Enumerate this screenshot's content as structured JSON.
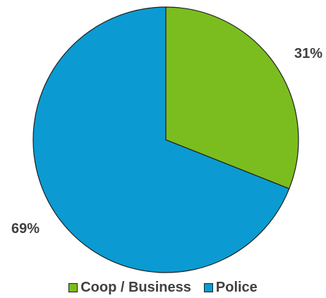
{
  "chart_data": {
    "type": "pie",
    "categories": [
      "Coop / Business",
      "Police"
    ],
    "values": [
      31,
      69
    ],
    "value_labels": [
      "31%",
      "69%"
    ],
    "colors": [
      "#7bbd1f",
      "#0b9bd2"
    ],
    "title": "",
    "start_angle_deg": 0,
    "direction": "clockwise",
    "legend_position": "bottom"
  },
  "legend": {
    "items": [
      {
        "label": "Coop / Business",
        "color": "#7bbd1f"
      },
      {
        "label": "Police",
        "color": "#0b9bd2"
      }
    ]
  }
}
